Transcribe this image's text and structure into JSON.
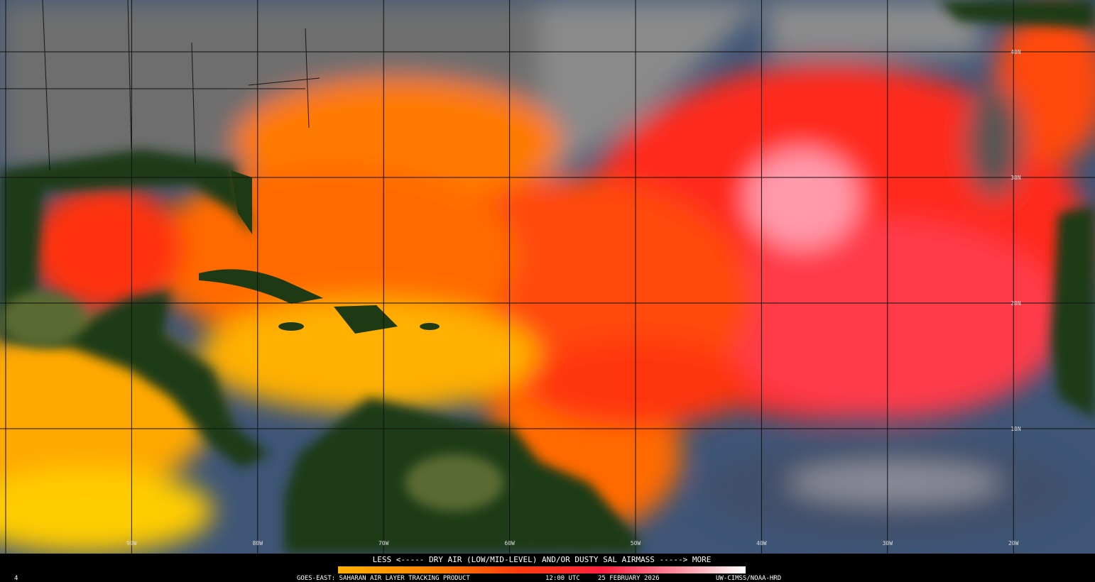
{
  "map": {
    "longitude_labels": [
      "90W",
      "80W",
      "70W",
      "60W",
      "50W",
      "40W",
      "30W",
      "20W"
    ],
    "latitude_labels": [
      "40N",
      "30N",
      "20N",
      "10N"
    ]
  },
  "legend": {
    "caption": "LESS <----- DRY AIR (LOW/MID-LEVEL) AND/OR DUSTY SAL AIRMASS -----> MORE"
  },
  "footer": {
    "frame": "4",
    "product": "GOES-EAST: SAHARAN AIR LAYER TRACKING PRODUCT",
    "time": "12:00 UTC",
    "date": "25 FEBRUARY 2026",
    "credit": "UW-CIMSS/NOAA-HRD"
  }
}
